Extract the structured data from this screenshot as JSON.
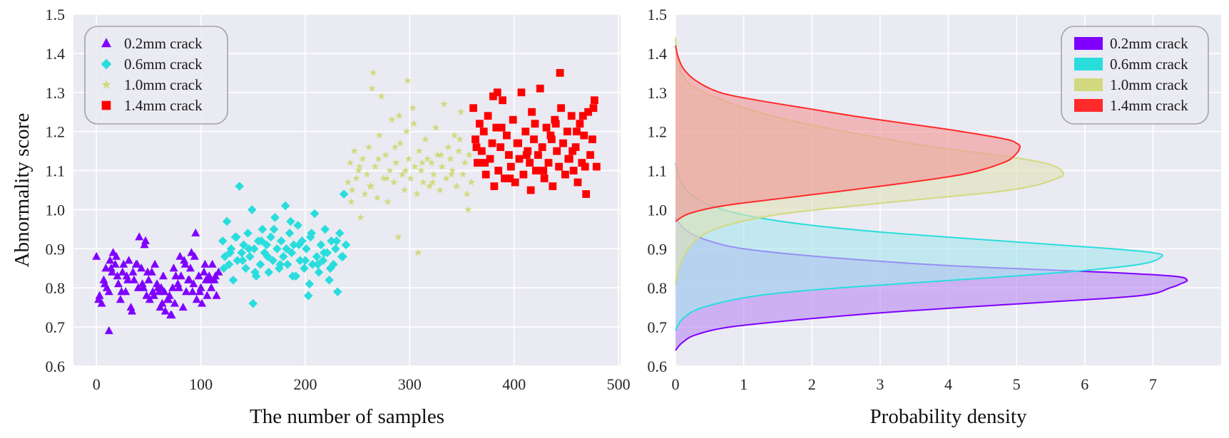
{
  "chart_data": [
    {
      "type": "scatter",
      "title": "",
      "xlabel": "The number of samples",
      "ylabel": "Abnormality score",
      "xlim": [
        -22,
        502
      ],
      "ylim": [
        0.6,
        1.5
      ],
      "xticks": [
        "0",
        "100",
        "200",
        "300",
        "400",
        "500"
      ],
      "xtick_values": [
        0,
        100,
        200,
        300,
        400,
        500
      ],
      "yticks": [
        "0.6",
        "0.7",
        "0.8",
        "0.9",
        "1.0",
        "1.1",
        "1.2",
        "1.3",
        "1.4",
        "1.5"
      ],
      "ytick_values": [
        0.6,
        0.7,
        0.8,
        0.9,
        1.0,
        1.1,
        1.2,
        1.3,
        1.4,
        1.5
      ],
      "grid": true,
      "legend_position": "top-left",
      "series": [
        {
          "name": "0.2mm crack",
          "marker": "triangle",
          "color": "#7f00ff",
          "x": [
            0,
            3,
            5,
            7,
            9,
            10,
            12,
            13,
            15,
            16,
            18,
            20,
            21,
            23,
            25,
            26,
            28,
            30,
            31,
            33,
            35,
            36,
            38,
            40,
            41,
            43,
            45,
            46,
            48,
            50,
            51,
            53,
            55,
            56,
            58,
            60,
            61,
            63,
            65,
            66,
            68,
            70,
            71,
            73,
            75,
            76,
            78,
            80,
            81,
            83,
            85,
            86,
            88,
            90,
            91,
            93,
            95,
            96,
            98,
            100,
            101,
            103,
            105,
            106,
            108,
            110,
            111,
            113,
            115,
            117,
            2,
            8,
            14,
            19,
            24,
            29,
            34,
            39,
            44,
            49,
            54,
            59,
            64,
            69,
            74,
            79,
            84,
            89,
            94,
            99,
            104,
            109,
            114,
            12,
            47,
            62,
            72,
            92
          ],
          "y": [
            0.88,
            0.78,
            0.76,
            0.82,
            0.85,
            0.8,
            0.79,
            0.87,
            0.84,
            0.89,
            0.86,
            0.83,
            0.81,
            0.77,
            0.84,
            0.86,
            0.79,
            0.82,
            0.87,
            0.75,
            0.84,
            0.82,
            0.86,
            0.8,
            0.93,
            0.85,
            0.8,
            0.91,
            0.78,
            0.82,
            0.77,
            0.84,
            0.78,
            0.86,
            0.81,
            0.79,
            0.75,
            0.76,
            0.79,
            0.74,
            0.77,
            0.78,
            0.73,
            0.8,
            0.76,
            0.83,
            0.81,
            0.88,
            0.83,
            0.75,
            0.86,
            0.79,
            0.82,
            0.85,
            0.89,
            0.81,
            0.94,
            0.77,
            0.83,
            0.8,
            0.76,
            0.84,
            0.82,
            0.78,
            0.83,
            0.8,
            0.86,
            0.82,
            0.78,
            0.84,
            0.77,
            0.81,
            0.85,
            0.88,
            0.79,
            0.83,
            0.74,
            0.86,
            0.81,
            0.84,
            0.79,
            0.8,
            0.83,
            0.77,
            0.85,
            0.8,
            0.87,
            0.82,
            0.88,
            0.79,
            0.86,
            0.82,
            0.83,
            0.69,
            0.92,
            0.8,
            0.73,
            0.79
          ]
        },
        {
          "name": "0.6mm crack",
          "marker": "diamond",
          "color": "#2adddd",
          "x": [
            121,
            123,
            125,
            127,
            129,
            131,
            133,
            135,
            137,
            139,
            141,
            143,
            145,
            147,
            149,
            151,
            153,
            155,
            157,
            159,
            161,
            163,
            165,
            167,
            169,
            171,
            173,
            175,
            177,
            179,
            181,
            183,
            185,
            187,
            189,
            191,
            193,
            195,
            197,
            199,
            201,
            203,
            205,
            207,
            209,
            211,
            213,
            215,
            217,
            219,
            221,
            223,
            225,
            227,
            229,
            231,
            233,
            235,
            237,
            239,
            122,
            128,
            134,
            140,
            146,
            152,
            158,
            164,
            170,
            176,
            182,
            188,
            194,
            200,
            206,
            212,
            218,
            224,
            230,
            236,
            150,
            204,
            186
          ],
          "y": [
            0.92,
            0.88,
            0.97,
            0.86,
            0.9,
            0.82,
            0.93,
            0.87,
            1.06,
            0.89,
            0.91,
            0.85,
            0.94,
            0.88,
            1.0,
            0.9,
            0.83,
            0.92,
            0.86,
            0.95,
            0.89,
            0.91,
            0.84,
            0.93,
            0.87,
            0.98,
            0.9,
            0.85,
            0.92,
            0.88,
            1.01,
            0.86,
            0.94,
            0.89,
            0.91,
            0.83,
            0.96,
            0.87,
            0.92,
            0.85,
            0.9,
            0.78,
            0.93,
            0.86,
            0.99,
            0.88,
            0.84,
            0.91,
            0.87,
            0.95,
            0.89,
            0.82,
            0.92,
            0.86,
            0.9,
            0.79,
            0.94,
            0.88,
            1.04,
            0.91,
            0.85,
            0.89,
            0.93,
            0.87,
            0.9,
            0.84,
            0.92,
            0.88,
            0.95,
            0.86,
            0.9,
            0.83,
            0.91,
            0.87,
            0.94,
            0.86,
            0.89,
            0.85,
            0.92,
            0.88,
            0.76,
            0.81,
            0.97
          ]
        },
        {
          "name": "1.0mm crack",
          "marker": "star",
          "color": "#d3d97e",
          "x": [
            241,
            243,
            245,
            247,
            249,
            251,
            253,
            255,
            257,
            259,
            261,
            263,
            265,
            267,
            269,
            271,
            273,
            275,
            277,
            279,
            281,
            283,
            285,
            287,
            289,
            291,
            293,
            295,
            297,
            299,
            301,
            303,
            305,
            307,
            309,
            311,
            313,
            315,
            317,
            319,
            321,
            323,
            325,
            327,
            329,
            331,
            333,
            335,
            337,
            339,
            341,
            343,
            345,
            347,
            349,
            351,
            353,
            355,
            357,
            359,
            244,
            252,
            262,
            270,
            278,
            286,
            296,
            304,
            312,
            322,
            330,
            340,
            348,
            356,
            264,
            298,
            308,
            290
          ],
          "y": [
            1.07,
            1.12,
            1.05,
            1.15,
            1.08,
            1.1,
            0.98,
            1.13,
            1.04,
            1.09,
            1.16,
            1.06,
            1.35,
            1.11,
            1.03,
            1.19,
            1.29,
            1.08,
            1.14,
            1.02,
            1.1,
            1.23,
            1.07,
            1.12,
            0.93,
            1.17,
            1.09,
            1.05,
            1.2,
            1.13,
            1.08,
            1.26,
            1.11,
            1.04,
            1.15,
            1.1,
            1.07,
            1.18,
            1.13,
            1.06,
            1.12,
            1.09,
            1.21,
            1.14,
            1.05,
            1.11,
            1.27,
            1.08,
            1.16,
            1.13,
            1.1,
            1.19,
            1.06,
            1.15,
            1.25,
            1.09,
            1.12,
            1.04,
            1.14,
            1.07,
            1.02,
            1.11,
            1.06,
            1.13,
            1.08,
            1.16,
            1.1,
            1.22,
            1.12,
            1.07,
            1.14,
            1.09,
            1.18,
            1.0,
            1.31,
            1.33,
            0.89,
            1.24
          ]
        },
        {
          "name": "1.4mm crack",
          "marker": "square",
          "color": "#ff0000",
          "x": [
            361,
            363,
            365,
            367,
            369,
            371,
            373,
            375,
            377,
            379,
            381,
            383,
            385,
            387,
            389,
            391,
            393,
            395,
            397,
            399,
            401,
            403,
            405,
            407,
            409,
            411,
            413,
            415,
            417,
            419,
            421,
            423,
            425,
            427,
            429,
            431,
            433,
            435,
            437,
            439,
            441,
            443,
            445,
            447,
            449,
            451,
            453,
            455,
            457,
            459,
            461,
            463,
            465,
            467,
            469,
            471,
            473,
            475,
            477,
            479,
            364,
            372,
            380,
            388,
            396,
            404,
            412,
            420,
            428,
            436,
            444,
            452,
            460,
            468,
            476,
            384,
            416,
            440,
            456,
            466
          ],
          "y": [
            1.26,
            1.18,
            1.12,
            1.22,
            1.15,
            1.2,
            1.09,
            1.24,
            1.13,
            1.17,
            1.06,
            1.21,
            1.1,
            1.16,
            1.28,
            1.08,
            1.19,
            1.14,
            1.11,
            1.23,
            1.07,
            1.17,
            1.13,
            1.3,
            1.09,
            1.2,
            1.15,
            1.12,
            1.25,
            1.18,
            1.1,
            1.14,
            1.31,
            1.16,
            1.08,
            1.21,
            1.12,
            1.19,
            1.06,
            1.23,
            1.15,
            1.11,
            1.26,
            1.17,
            1.09,
            1.2,
            1.13,
            1.24,
            1.1,
            1.16,
            1.07,
            1.22,
            1.12,
            1.19,
            1.04,
            1.25,
            1.14,
            1.18,
            1.28,
            1.11,
            1.16,
            1.12,
            1.29,
            1.21,
            1.08,
            1.17,
            1.14,
            1.22,
            1.1,
            1.18,
            1.35,
            1.13,
            1.2,
            1.11,
            1.26,
            1.3,
            1.05,
            1.22,
            1.15,
            1.24
          ]
        }
      ]
    },
    {
      "type": "area",
      "title": "",
      "xlabel": "Probability density",
      "ylabel": "",
      "orientation": "horizontal",
      "xlim": [
        0,
        8.0
      ],
      "ylim": [
        0.6,
        1.5
      ],
      "xticks": [
        "0",
        "1",
        "2",
        "3",
        "4",
        "5",
        "6",
        "7"
      ],
      "xtick_values": [
        0,
        1,
        2,
        3,
        4,
        5,
        6,
        7
      ],
      "yticks": [
        "0.6",
        "0.7",
        "0.8",
        "0.9",
        "1.0",
        "1.1",
        "1.2",
        "1.3",
        "1.4",
        "1.5"
      ],
      "ytick_values": [
        0.6,
        0.7,
        0.8,
        0.9,
        1.0,
        1.1,
        1.2,
        1.3,
        1.4,
        1.5
      ],
      "grid": true,
      "legend_position": "top-right",
      "series": [
        {
          "name": "0.2mm crack",
          "color": "#7f00ff",
          "fill": "#b98cf2",
          "score": [
            0.64,
            0.66,
            0.68,
            0.7,
            0.72,
            0.74,
            0.76,
            0.78,
            0.8,
            0.81,
            0.82,
            0.83,
            0.84,
            0.85,
            0.86,
            0.88,
            0.9,
            0.92,
            0.94,
            0.96,
            0.98
          ],
          "density": [
            0.0,
            0.1,
            0.3,
            0.8,
            1.9,
            3.3,
            5.1,
            6.8,
            7.25,
            7.4,
            7.5,
            7.3,
            6.3,
            4.9,
            3.7,
            2.1,
            1.0,
            0.5,
            0.22,
            0.08,
            0.0
          ]
        },
        {
          "name": "0.6mm crack",
          "color": "#2adddd",
          "fill": "#a8e6ee",
          "score": [
            0.69,
            0.72,
            0.75,
            0.78,
            0.8,
            0.82,
            0.84,
            0.86,
            0.88,
            0.89,
            0.9,
            0.92,
            0.94,
            0.96,
            0.98,
            1.0,
            1.02,
            1.04,
            1.06,
            1.08,
            1.1,
            1.12
          ],
          "density": [
            0.0,
            0.1,
            0.4,
            1.2,
            2.4,
            4.1,
            5.7,
            6.8,
            7.13,
            7.0,
            6.4,
            4.8,
            3.2,
            2.0,
            1.2,
            0.7,
            0.4,
            0.22,
            0.12,
            0.06,
            0.03,
            0.0
          ]
        },
        {
          "name": "1.0mm crack",
          "color": "#d3d97e",
          "fill": "#dfe2b8",
          "score": [
            0.81,
            0.85,
            0.89,
            0.93,
            0.96,
            0.99,
            1.02,
            1.05,
            1.08,
            1.1,
            1.12,
            1.14,
            1.16,
            1.19,
            1.22,
            1.25,
            1.28,
            1.31,
            1.34,
            1.37,
            1.4,
            1.44
          ],
          "density": [
            0.0,
            0.05,
            0.15,
            0.35,
            0.75,
            1.6,
            3.2,
            4.9,
            5.6,
            5.66,
            5.4,
            4.7,
            3.8,
            2.8,
            1.9,
            1.2,
            0.7,
            0.3,
            0.12,
            0.05,
            0.02,
            0.0
          ]
        },
        {
          "name": "1.4mm crack",
          "color": "#ff2a2a",
          "fill": "#f29898",
          "score": [
            0.97,
            0.99,
            1.01,
            1.03,
            1.06,
            1.09,
            1.12,
            1.14,
            1.16,
            1.17,
            1.18,
            1.2,
            1.22,
            1.24,
            1.26,
            1.28,
            1.3,
            1.33,
            1.36,
            1.39,
            1.42
          ],
          "density": [
            0.0,
            0.2,
            0.7,
            1.6,
            3.0,
            4.2,
            4.8,
            4.98,
            5.05,
            5.0,
            4.85,
            4.2,
            3.4,
            2.6,
            1.9,
            1.2,
            0.65,
            0.3,
            0.12,
            0.04,
            0.0
          ]
        }
      ]
    }
  ]
}
